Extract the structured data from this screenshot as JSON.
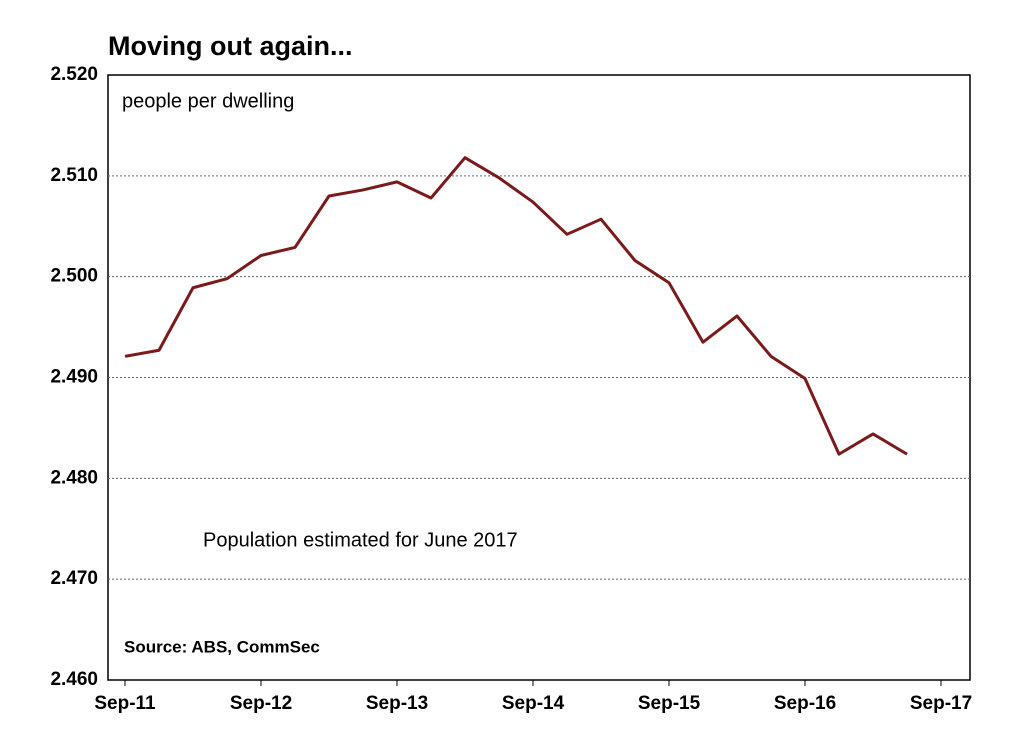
{
  "chart_data": {
    "type": "line",
    "title": "Moving out again...",
    "annotations": [
      "people per dwelling",
      "Population estimated for June 2017",
      "Source: ABS, CommSec"
    ],
    "categories": [
      "Sep-11",
      null,
      null,
      null,
      "Sep-12",
      null,
      null,
      null,
      "Sep-13",
      null,
      null,
      null,
      "Sep-14",
      null,
      null,
      null,
      "Sep-15",
      null,
      null,
      null,
      "Sep-16",
      null,
      null,
      null,
      "Sep-17"
    ],
    "series": [
      {
        "color": "#7a1a1a",
        "values": [
          2.4921,
          2.4927,
          2.4989,
          2.4998,
          2.5021,
          2.5029,
          2.508,
          2.5086,
          2.5094,
          2.5078,
          2.5118,
          2.5098,
          2.5074,
          2.5042,
          2.5057,
          2.5016,
          2.4994,
          2.4935,
          2.4961,
          2.4921,
          2.4899,
          2.4824,
          2.4844,
          2.4824,
          null
        ]
      }
    ],
    "ylim": [
      2.46,
      2.52
    ],
    "yticks": [
      {
        "value": 2.46,
        "label": "2.460"
      },
      {
        "value": 2.47,
        "label": "2.470"
      },
      {
        "value": 2.48,
        "label": "2.480"
      },
      {
        "value": 2.49,
        "label": "2.490"
      },
      {
        "value": 2.5,
        "label": "2.500"
      },
      {
        "value": 2.51,
        "label": "2.510"
      },
      {
        "value": 2.52,
        "label": "2.520"
      }
    ],
    "grid": true
  }
}
